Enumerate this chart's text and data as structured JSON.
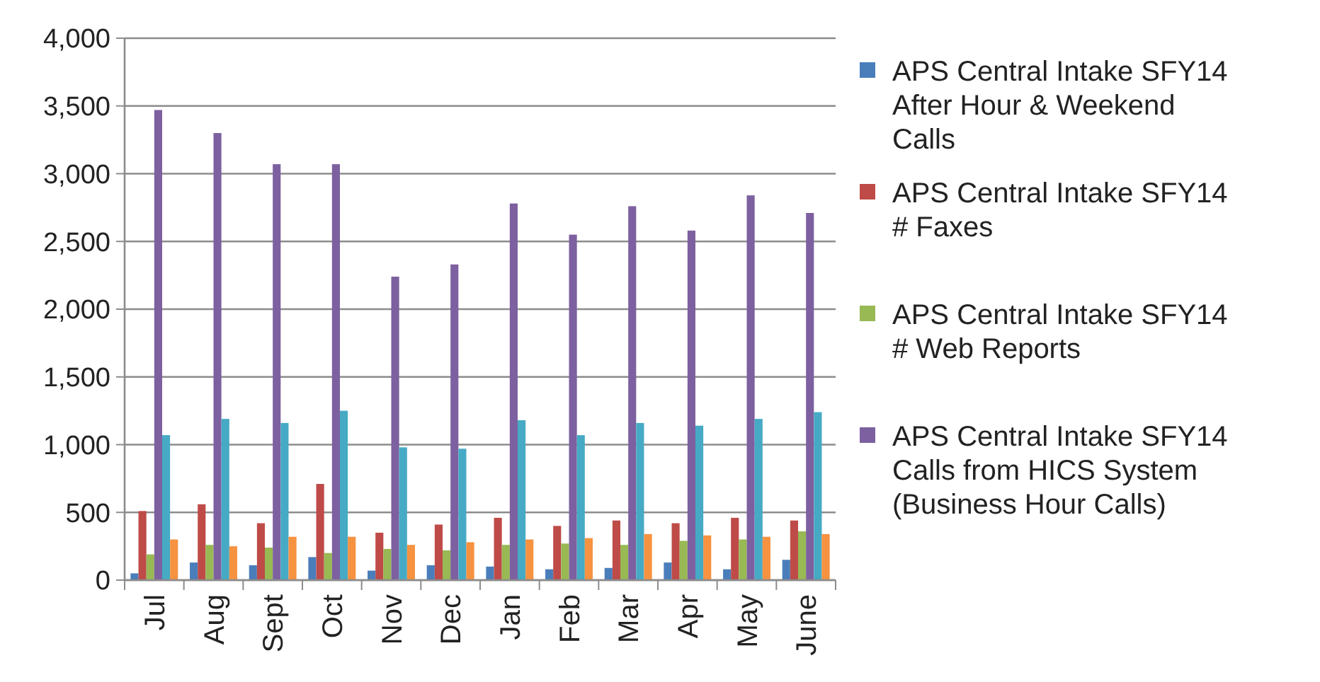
{
  "chart_data": {
    "type": "bar",
    "categories": [
      "Jul",
      "Aug",
      "Sept",
      "Oct",
      "Nov",
      "Dec",
      "Jan",
      "Feb",
      "Mar",
      "Apr",
      "May",
      "June"
    ],
    "series": [
      {
        "name": "APS Central Intake SFY14 After Hour & Weekend Calls",
        "color": "#4a7ebb",
        "values": [
          50,
          130,
          110,
          170,
          70,
          110,
          100,
          80,
          90,
          130,
          80,
          150
        ]
      },
      {
        "name": "APS Central Intake SFY14 # Faxes",
        "color": "#be4b48",
        "values": [
          510,
          560,
          420,
          710,
          350,
          410,
          460,
          400,
          440,
          420,
          460,
          440
        ]
      },
      {
        "name": "APS Central Intake SFY14 # Web Reports",
        "color": "#98b954",
        "values": [
          190,
          260,
          240,
          200,
          230,
          220,
          260,
          270,
          260,
          290,
          300,
          360
        ]
      },
      {
        "name": "APS Central Intake SFY14 Calls from HICS System (Business Hour Calls)",
        "color": "#7d60a0",
        "values": [
          3470,
          3300,
          3070,
          3070,
          2240,
          2330,
          2780,
          2550,
          2760,
          2580,
          2840,
          2710
        ]
      },
      {
        "color": "#46aac5",
        "values": [
          1070,
          1190,
          1160,
          1250,
          980,
          970,
          1180,
          1070,
          1160,
          1140,
          1190,
          1240
        ]
      },
      {
        "color": "#f69240",
        "values": [
          300,
          250,
          320,
          320,
          260,
          280,
          300,
          310,
          340,
          330,
          320,
          340
        ]
      }
    ],
    "ylim": [
      0,
      4000
    ],
    "yticks": [
      {
        "value": 0,
        "label": "0"
      },
      {
        "value": 500,
        "label": "500"
      },
      {
        "value": 1000,
        "label": "1,000"
      },
      {
        "value": 1500,
        "label": "1,500"
      },
      {
        "value": 2000,
        "label": "2,000"
      },
      {
        "value": 2500,
        "label": "2,500"
      },
      {
        "value": 3000,
        "label": "3,000"
      },
      {
        "value": 3500,
        "label": "3,500"
      },
      {
        "value": 4000,
        "label": "4,000"
      }
    ],
    "grid": "y",
    "legend": "right"
  }
}
